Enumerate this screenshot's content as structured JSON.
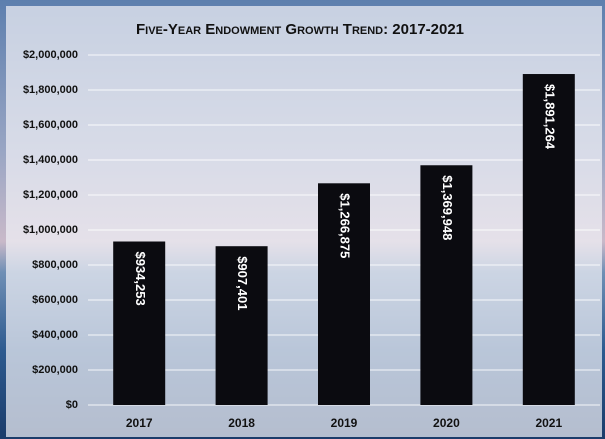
{
  "chart_data": {
    "type": "bar",
    "title": "Five-Year Endowment Growth Trend: 2017-2021",
    "categories": [
      "2017",
      "2018",
      "2019",
      "2020",
      "2021"
    ],
    "values": [
      934253,
      907401,
      1266875,
      1369948,
      1891264
    ],
    "value_labels": [
      "$934,253",
      "$907,401",
      "$1,266,875",
      "$1,369,948",
      "$1,891,264"
    ],
    "color": "#0b0b10",
    "ylim": [
      0,
      2000000
    ],
    "yticks": [
      {
        "value": 0,
        "label": "$0"
      },
      {
        "value": 200000,
        "label": "$200,000"
      },
      {
        "value": 400000,
        "label": "$400,000"
      },
      {
        "value": 600000,
        "label": "$600,000"
      },
      {
        "value": 800000,
        "label": "$800,000"
      },
      {
        "value": 1000000,
        "label": "$1,000,000"
      },
      {
        "value": 1200000,
        "label": "$1,200,000"
      },
      {
        "value": 1400000,
        "label": "$1,400,000"
      },
      {
        "value": 1600000,
        "label": "$1,600,000"
      },
      {
        "value": 1800000,
        "label": "$1,800,000"
      },
      {
        "value": 2000000,
        "label": "$2,000,000"
      }
    ],
    "grid": true
  }
}
